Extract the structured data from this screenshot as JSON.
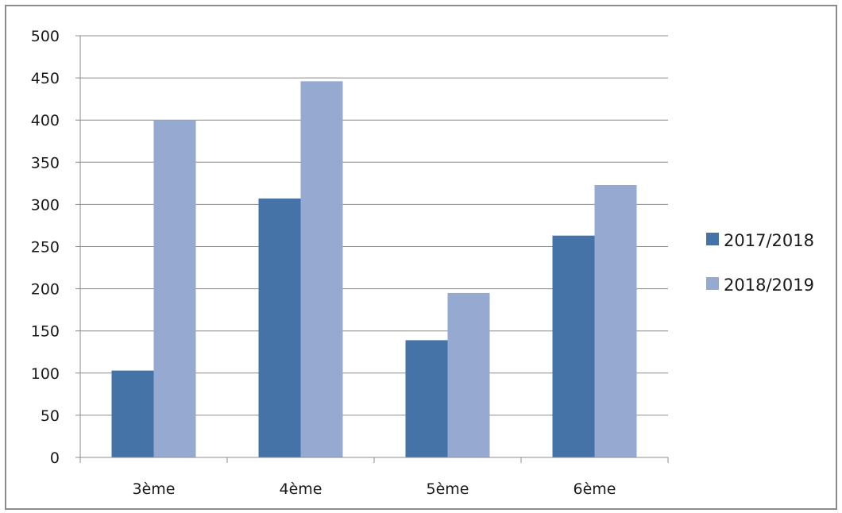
{
  "chart_data": {
    "type": "bar",
    "categories": [
      "3ème",
      "4ème",
      "5ème",
      "6ème"
    ],
    "series": [
      {
        "name": "2017/2018",
        "values": [
          103,
          307,
          139,
          263
        ],
        "color": "#4572a7"
      },
      {
        "name": "2018/2019",
        "values": [
          400,
          446,
          195,
          323
        ],
        "color": "#95a9d1"
      }
    ],
    "title": "",
    "xlabel": "",
    "ylabel": "",
    "ylim": [
      0,
      500
    ],
    "yticks": [
      0,
      50,
      100,
      150,
      200,
      250,
      300,
      350,
      400,
      450,
      500
    ],
    "grid": true,
    "legend": "right",
    "colors": {
      "gridline": "#8c8c8c",
      "axis": "#8c8c8c",
      "frame": "#8c8c8c"
    }
  }
}
